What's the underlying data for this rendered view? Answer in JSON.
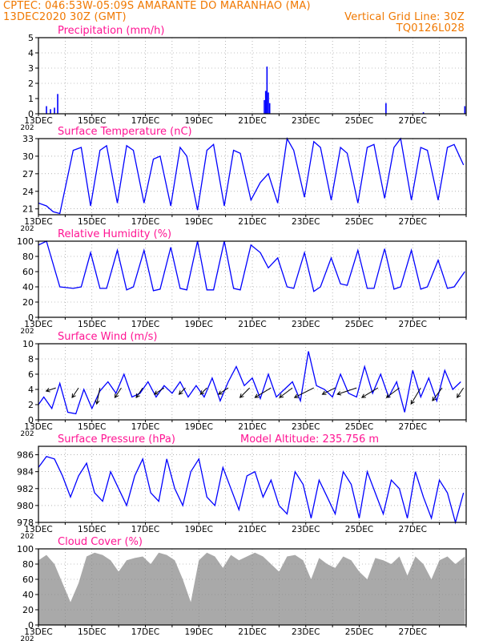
{
  "header": {
    "line1_left": "CPTEC:   046:53W-05:09S   AMARANTE DO MARANHAO (MA)",
    "line2_left": "13DEC2020 30Z (GMT)",
    "line2_right": "Vertical Grid Line: 30Z",
    "line3_right": "TQ0126L028"
  },
  "colors": {
    "header": "#f07800",
    "titles": "#ff1493",
    "series": "#0000ff",
    "cloud": "#a9a9a9",
    "frame": "#000000",
    "grid": "#888888"
  },
  "x_axis": {
    "ticks": [
      "13DEC",
      "15DEC",
      "17DEC",
      "19DEC",
      "21DEC",
      "23DEC",
      "25DEC",
      "27DEC"
    ],
    "year_fragment": "202"
  },
  "chart_data": [
    {
      "type": "bar",
      "title": "Precipitation (mm/h)",
      "ylim": [
        0,
        5
      ],
      "yticks": [
        "0",
        "1",
        "2",
        "3",
        "4",
        "5"
      ],
      "grid": true,
      "x_unit": "days since 13DEC",
      "x": [
        0.3,
        0.45,
        0.6,
        0.72,
        8.45,
        8.5,
        8.55,
        8.6,
        8.65,
        13.0,
        14.4,
        15.95
      ],
      "values": [
        0.5,
        0.3,
        0.4,
        1.3,
        0.9,
        1.5,
        3.1,
        1.4,
        0.7,
        0.7,
        0.1,
        0.5
      ]
    },
    {
      "type": "line",
      "title": "Surface Temperature (nC)",
      "ylim": [
        20,
        33
      ],
      "yticks": [
        "21",
        "24",
        "27",
        "30",
        "33"
      ],
      "grid": true,
      "series": [
        {
          "x": [
            0,
            0.3,
            0.55,
            0.8,
            1.3,
            1.6,
            1.95,
            2.3,
            2.55,
            2.95,
            3.3,
            3.55,
            3.95,
            4.3,
            4.55,
            4.95,
            5.3,
            5.55,
            5.95,
            6.3,
            6.55,
            6.95,
            7.3,
            7.55,
            7.95,
            8.3,
            8.6,
            8.95,
            9.3,
            9.55,
            9.95,
            10.3,
            10.55,
            10.95,
            11.3,
            11.55,
            11.95,
            12.3,
            12.55,
            12.95,
            13.3,
            13.55,
            13.95,
            14.3,
            14.55,
            14.95,
            15.3,
            15.55,
            15.9
          ],
          "values": [
            22,
            21.5,
            20.5,
            20.2,
            31.0,
            31.5,
            21.5,
            31.0,
            31.8,
            22.0,
            31.8,
            31.0,
            22.0,
            29.5,
            30.0,
            21.5,
            31.5,
            30.0,
            20.8,
            31.0,
            32.0,
            21.5,
            31.0,
            30.5,
            22.5,
            25.5,
            27.0,
            22.0,
            33.0,
            31.0,
            23.0,
            32.5,
            31.5,
            22.5,
            31.5,
            30.5,
            22.0,
            31.5,
            32.0,
            22.8,
            31.5,
            33.0,
            22.5,
            31.5,
            31.0,
            22.5,
            31.5,
            32.0,
            28.5
          ]
        }
      ]
    },
    {
      "type": "line",
      "title": "Relative Humidity (%)",
      "ylim": [
        0,
        100
      ],
      "yticks": [
        "0",
        "20",
        "40",
        "60",
        "80",
        "100"
      ],
      "grid": true,
      "series": [
        {
          "x": [
            0,
            0.3,
            0.8,
            1.3,
            1.6,
            1.95,
            2.3,
            2.55,
            2.95,
            3.3,
            3.55,
            3.95,
            4.3,
            4.55,
            4.95,
            5.3,
            5.55,
            5.95,
            6.3,
            6.55,
            6.95,
            7.3,
            7.55,
            7.95,
            8.3,
            8.6,
            8.95,
            9.3,
            9.55,
            9.95,
            10.3,
            10.55,
            10.95,
            11.3,
            11.55,
            11.95,
            12.3,
            12.55,
            12.95,
            13.3,
            13.55,
            13.95,
            14.3,
            14.55,
            14.95,
            15.3,
            15.55,
            15.95
          ],
          "values": [
            95,
            100,
            40,
            38,
            40,
            85,
            38,
            38,
            88,
            36,
            40,
            88,
            35,
            37,
            92,
            38,
            36,
            100,
            36,
            36,
            100,
            38,
            36,
            95,
            85,
            65,
            78,
            40,
            38,
            85,
            34,
            40,
            78,
            44,
            42,
            88,
            38,
            38,
            90,
            37,
            40,
            88,
            37,
            40,
            75,
            38,
            40,
            60
          ]
        }
      ]
    },
    {
      "type": "line",
      "title": "Surface Wind (m/s)",
      "ylim": [
        0,
        10
      ],
      "yticks": [
        "0",
        "2",
        "4",
        "6",
        "8",
        "10"
      ],
      "grid": true,
      "series": [
        {
          "x": [
            0,
            0.2,
            0.5,
            0.8,
            1.1,
            1.4,
            1.7,
            2.0,
            2.3,
            2.6,
            2.9,
            3.2,
            3.5,
            3.8,
            4.1,
            4.4,
            4.7,
            5.0,
            5.3,
            5.6,
            5.9,
            6.2,
            6.5,
            6.8,
            7.1,
            7.4,
            7.7,
            8.0,
            8.3,
            8.6,
            8.9,
            9.2,
            9.5,
            9.8,
            10.1,
            10.4,
            10.7,
            11.0,
            11.3,
            11.6,
            11.9,
            12.2,
            12.5,
            12.8,
            13.1,
            13.4,
            13.7,
            14.0,
            14.3,
            14.6,
            14.9,
            15.2,
            15.5,
            15.8
          ],
          "values": [
            2.0,
            3.0,
            1.5,
            4.8,
            1.0,
            0.8,
            4.0,
            1.5,
            3.8,
            5.0,
            3.5,
            6.0,
            3.0,
            3.5,
            5.0,
            3.0,
            4.5,
            3.5,
            5.0,
            3.0,
            4.5,
            3.0,
            5.5,
            2.5,
            5.0,
            7.0,
            4.5,
            5.5,
            2.8,
            6.0,
            3.0,
            4.0,
            5.0,
            2.5,
            9.0,
            4.5,
            4.0,
            3.0,
            6.0,
            3.5,
            3.0,
            7.0,
            3.5,
            6.0,
            3.0,
            5.0,
            1.0,
            6.5,
            3.0,
            5.5,
            2.5,
            6.5,
            4.0,
            5.0
          ]
        }
      ],
      "barbs": {
        "x": [
          0.65,
          1.5,
          2.3,
          3.1,
          3.9,
          4.7,
          5.5,
          6.3,
          7.1,
          7.9,
          8.7,
          9.5,
          10.3,
          11.1,
          11.9,
          12.7,
          13.5,
          14.3,
          15.1,
          15.9
        ],
        "u": [
          1.5,
          1.0,
          0.5,
          1.0,
          1.0,
          1.5,
          1.0,
          1.0,
          1.5,
          1.5,
          2.5,
          2.0,
          3.0,
          2.0,
          3.0,
          2.5,
          2.0,
          1.5,
          1.5,
          1.0
        ],
        "v": [
          0.5,
          1.5,
          2.5,
          1.5,
          1.5,
          1.0,
          1.0,
          1.0,
          1.0,
          1.5,
          1.5,
          1.5,
          1.5,
          1.0,
          1.0,
          1.5,
          1.5,
          2.5,
          2.0,
          1.5
        ]
      }
    },
    {
      "type": "line",
      "title": "Surface Pressure (hPa)",
      "subtitle": "Model Altitude: 235.756  m",
      "ylim": [
        978,
        987
      ],
      "yticks": [
        "978",
        "980",
        "982",
        "984",
        "986"
      ],
      "grid": true,
      "series": [
        {
          "x": [
            0,
            0.3,
            0.6,
            0.9,
            1.2,
            1.5,
            1.8,
            2.1,
            2.4,
            2.7,
            3.0,
            3.3,
            3.6,
            3.9,
            4.2,
            4.5,
            4.8,
            5.1,
            5.4,
            5.7,
            6.0,
            6.3,
            6.6,
            6.9,
            7.2,
            7.5,
            7.8,
            8.1,
            8.4,
            8.7,
            9.0,
            9.3,
            9.6,
            9.9,
            10.2,
            10.5,
            10.8,
            11.1,
            11.4,
            11.7,
            12.0,
            12.3,
            12.6,
            12.9,
            13.2,
            13.5,
            13.8,
            14.1,
            14.4,
            14.7,
            15.0,
            15.3,
            15.6,
            15.9
          ],
          "values": [
            984.5,
            985.8,
            985.5,
            983.5,
            981.0,
            983.5,
            985.0,
            981.5,
            980.5,
            984.0,
            982.0,
            980.0,
            983.5,
            985.5,
            981.5,
            980.5,
            985.5,
            982.0,
            980.0,
            984.0,
            985.5,
            981.0,
            980.0,
            984.5,
            982.0,
            979.5,
            983.5,
            984.0,
            981.0,
            983.0,
            980.0,
            979.0,
            984.0,
            982.5,
            978.5,
            983.0,
            981.0,
            979.0,
            984.0,
            982.5,
            978.5,
            984.0,
            981.5,
            979.0,
            983.0,
            982.0,
            978.5,
            984.0,
            981.0,
            978.5,
            983.0,
            981.5,
            978.0,
            981.5
          ]
        }
      ]
    },
    {
      "type": "area",
      "title": "Cloud Cover (%)",
      "ylim": [
        0,
        100
      ],
      "yticks": [
        "0",
        "20",
        "40",
        "60",
        "80",
        "100"
      ],
      "grid": true,
      "series": [
        {
          "x": [
            0,
            0.3,
            0.6,
            0.9,
            1.2,
            1.5,
            1.8,
            2.1,
            2.4,
            2.7,
            3.0,
            3.3,
            3.6,
            3.9,
            4.2,
            4.5,
            4.8,
            5.1,
            5.4,
            5.7,
            6.0,
            6.3,
            6.6,
            6.9,
            7.2,
            7.5,
            7.8,
            8.1,
            8.4,
            8.7,
            9.0,
            9.3,
            9.6,
            9.9,
            10.2,
            10.5,
            10.8,
            11.1,
            11.4,
            11.7,
            12.0,
            12.3,
            12.6,
            12.9,
            13.2,
            13.5,
            13.8,
            14.1,
            14.4,
            14.7,
            15.0,
            15.3,
            15.6,
            15.95
          ],
          "values": [
            85,
            92,
            80,
            55,
            30,
            55,
            90,
            95,
            92,
            85,
            70,
            85,
            88,
            90,
            80,
            95,
            92,
            85,
            60,
            30,
            85,
            95,
            90,
            75,
            92,
            85,
            90,
            95,
            90,
            80,
            70,
            90,
            92,
            85,
            60,
            88,
            80,
            75,
            90,
            85,
            70,
            60,
            88,
            85,
            80,
            90,
            65,
            90,
            80,
            60,
            85,
            90,
            80,
            90
          ]
        }
      ]
    }
  ]
}
